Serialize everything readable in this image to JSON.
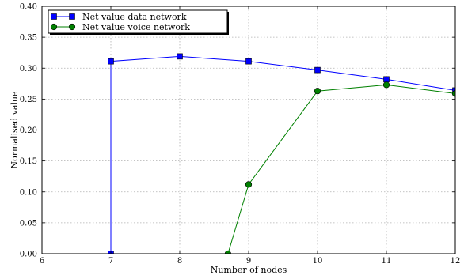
{
  "chart_data": {
    "type": "line",
    "title": "",
    "xlabel": "Number of nodes",
    "ylabel": "Normalised value",
    "xlim": [
      6,
      12
    ],
    "ylim": [
      0.0,
      0.4
    ],
    "x_ticks": [
      6,
      7,
      8,
      9,
      10,
      11,
      12
    ],
    "x_tick_labels": [
      "6",
      "7",
      "8",
      "9",
      "10",
      "11",
      "12"
    ],
    "y_ticks": [
      0.0,
      0.05,
      0.1,
      0.15,
      0.2,
      0.25,
      0.3,
      0.35,
      0.4
    ],
    "y_tick_labels": [
      "0.00",
      "0.05",
      "0.10",
      "0.15",
      "0.20",
      "0.25",
      "0.30",
      "0.35",
      "0.40"
    ],
    "grid": true,
    "legend_position": "top-left",
    "series": [
      {
        "name": "Net value data network",
        "color": "#0000ff",
        "marker": "square",
        "marker_fill": "#0000ff",
        "x": [
          7,
          7,
          8,
          9,
          10,
          11,
          12
        ],
        "y": [
          0.0,
          0.311,
          0.319,
          0.311,
          0.297,
          0.282,
          0.264
        ]
      },
      {
        "name": "Net value voice network",
        "color": "#008000",
        "marker": "circle",
        "marker_fill": "#008000",
        "x": [
          8.7,
          9,
          10,
          11,
          12
        ],
        "y": [
          0.0,
          0.112,
          0.263,
          0.273,
          0.259
        ]
      }
    ]
  }
}
